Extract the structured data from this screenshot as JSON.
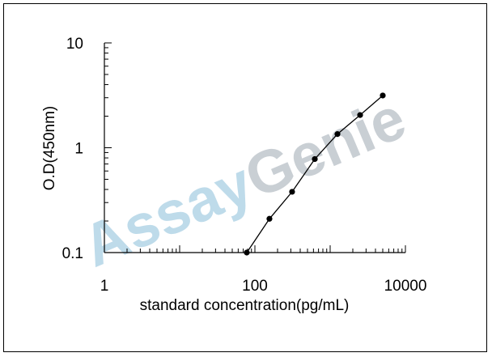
{
  "watermark": {
    "part1": "Assay",
    "part2": "Genie",
    "color1": "#a9cfe3",
    "color2": "#b8bfc6"
  },
  "chart_data": {
    "type": "line",
    "x_scale": "log",
    "y_scale": "log",
    "xlabel": "standard concentration(pg/mL)",
    "ylabel": "O.D(450nm)",
    "xlim": [
      1,
      10000
    ],
    "ylim": [
      0.1,
      10
    ],
    "x_tick_labels": [
      {
        "value": 1,
        "label": "1"
      },
      {
        "value": 100,
        "label": "100"
      },
      {
        "value": 10000,
        "label": "10000"
      }
    ],
    "y_tick_labels": [
      {
        "value": 0.1,
        "label": "0.1"
      },
      {
        "value": 1,
        "label": "1"
      },
      {
        "value": 10,
        "label": "10"
      }
    ],
    "grid": false,
    "legend": "none",
    "series": [
      {
        "x": [
          78,
          156,
          312,
          625,
          1250,
          2500,
          5000
        ],
        "y": [
          0.1,
          0.21,
          0.38,
          0.78,
          1.35,
          2.05,
          3.15
        ]
      }
    ],
    "line_color": "#000000",
    "marker_color": "#000000"
  }
}
